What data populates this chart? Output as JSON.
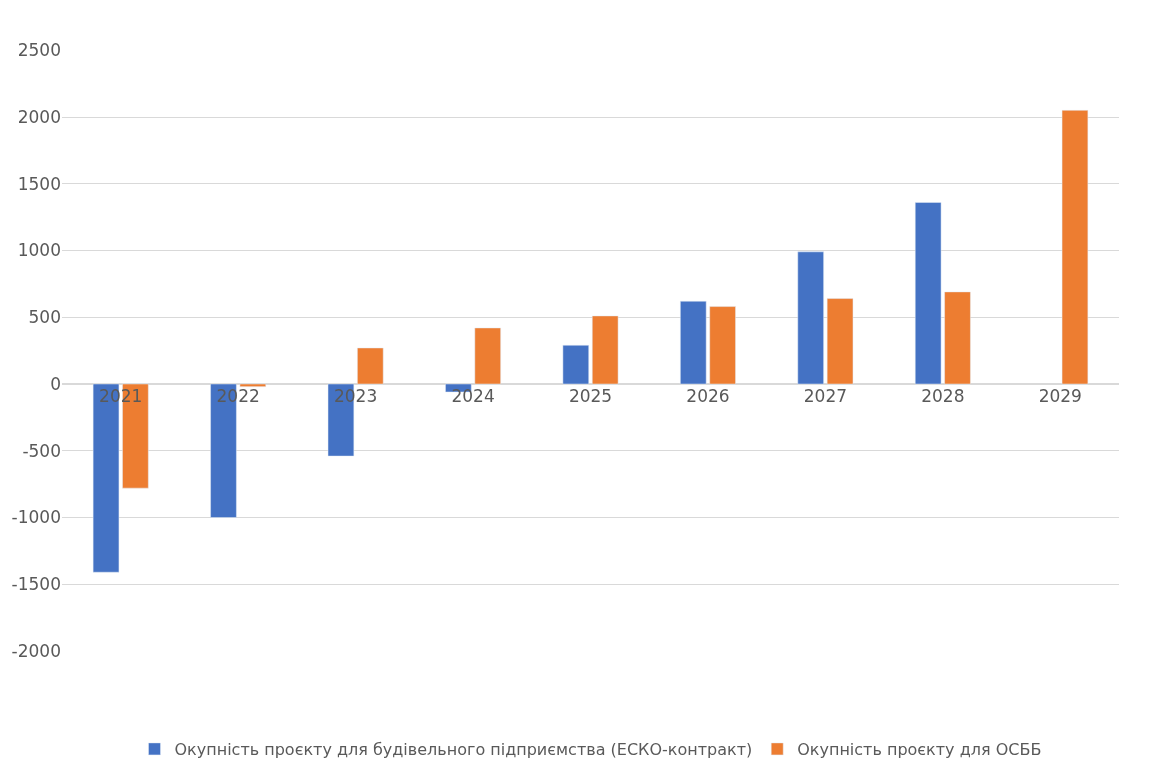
{
  "chart_data": {
    "type": "bar",
    "categories": [
      "2021",
      "2022",
      "2023",
      "2024",
      "2025",
      "2026",
      "2027",
      "2028",
      "2029"
    ],
    "series": [
      {
        "name": "Окупність проєкту для будівельного підприємства (ЕСКО-контракт)",
        "color": "#4472c4",
        "values": [
          -1410,
          -1000,
          -540,
          -60,
          290,
          620,
          990,
          1360,
          null
        ]
      },
      {
        "name": "Окупність проєкту для ОСББ",
        "color": "#ed7d31",
        "values": [
          -780,
          -20,
          270,
          420,
          510,
          580,
          640,
          690,
          2050
        ]
      }
    ],
    "ylim": [
      -2000,
      2500
    ],
    "yticks": [
      -2000,
      -1500,
      -1000,
      -500,
      0,
      500,
      1000,
      1500,
      2000,
      2500
    ],
    "grid": "y",
    "legend": "bottom"
  }
}
